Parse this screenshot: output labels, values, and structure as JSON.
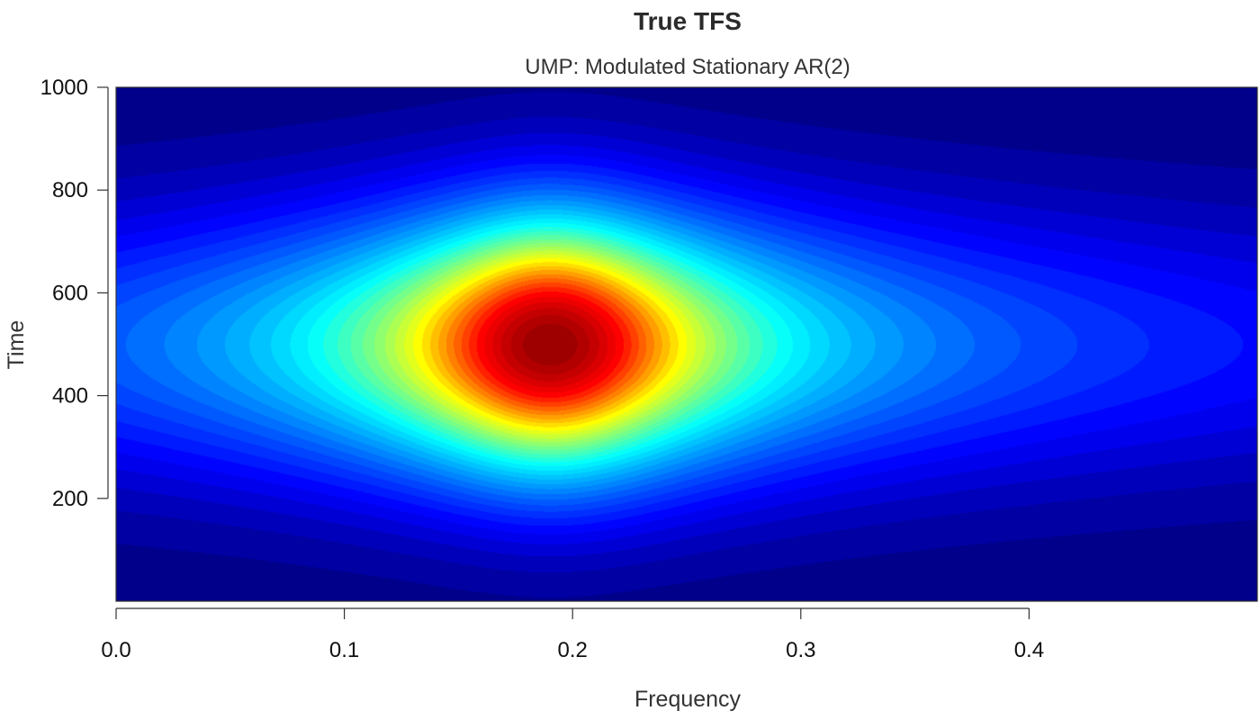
{
  "chart_data": {
    "type": "heatmap",
    "title": "True TFS",
    "subtitle": "UMP: Modulated Stationary AR(2)",
    "xlabel": "Frequency",
    "ylabel": "Time",
    "xlim": [
      0,
      0.5
    ],
    "ylim": [
      0,
      1000
    ],
    "x_ticks": [
      "0.0",
      "0.1",
      "0.2",
      "0.3",
      "0.4"
    ],
    "y_ticks": [
      "200",
      "400",
      "600",
      "800",
      "1000"
    ],
    "peak": {
      "frequency": 0.19,
      "time": 500
    },
    "colormap": [
      "#00008b",
      "#0000ff",
      "#00ffff",
      "#ffff00",
      "#ff0000",
      "#8b0000"
    ],
    "legend": "none",
    "grid": false
  }
}
